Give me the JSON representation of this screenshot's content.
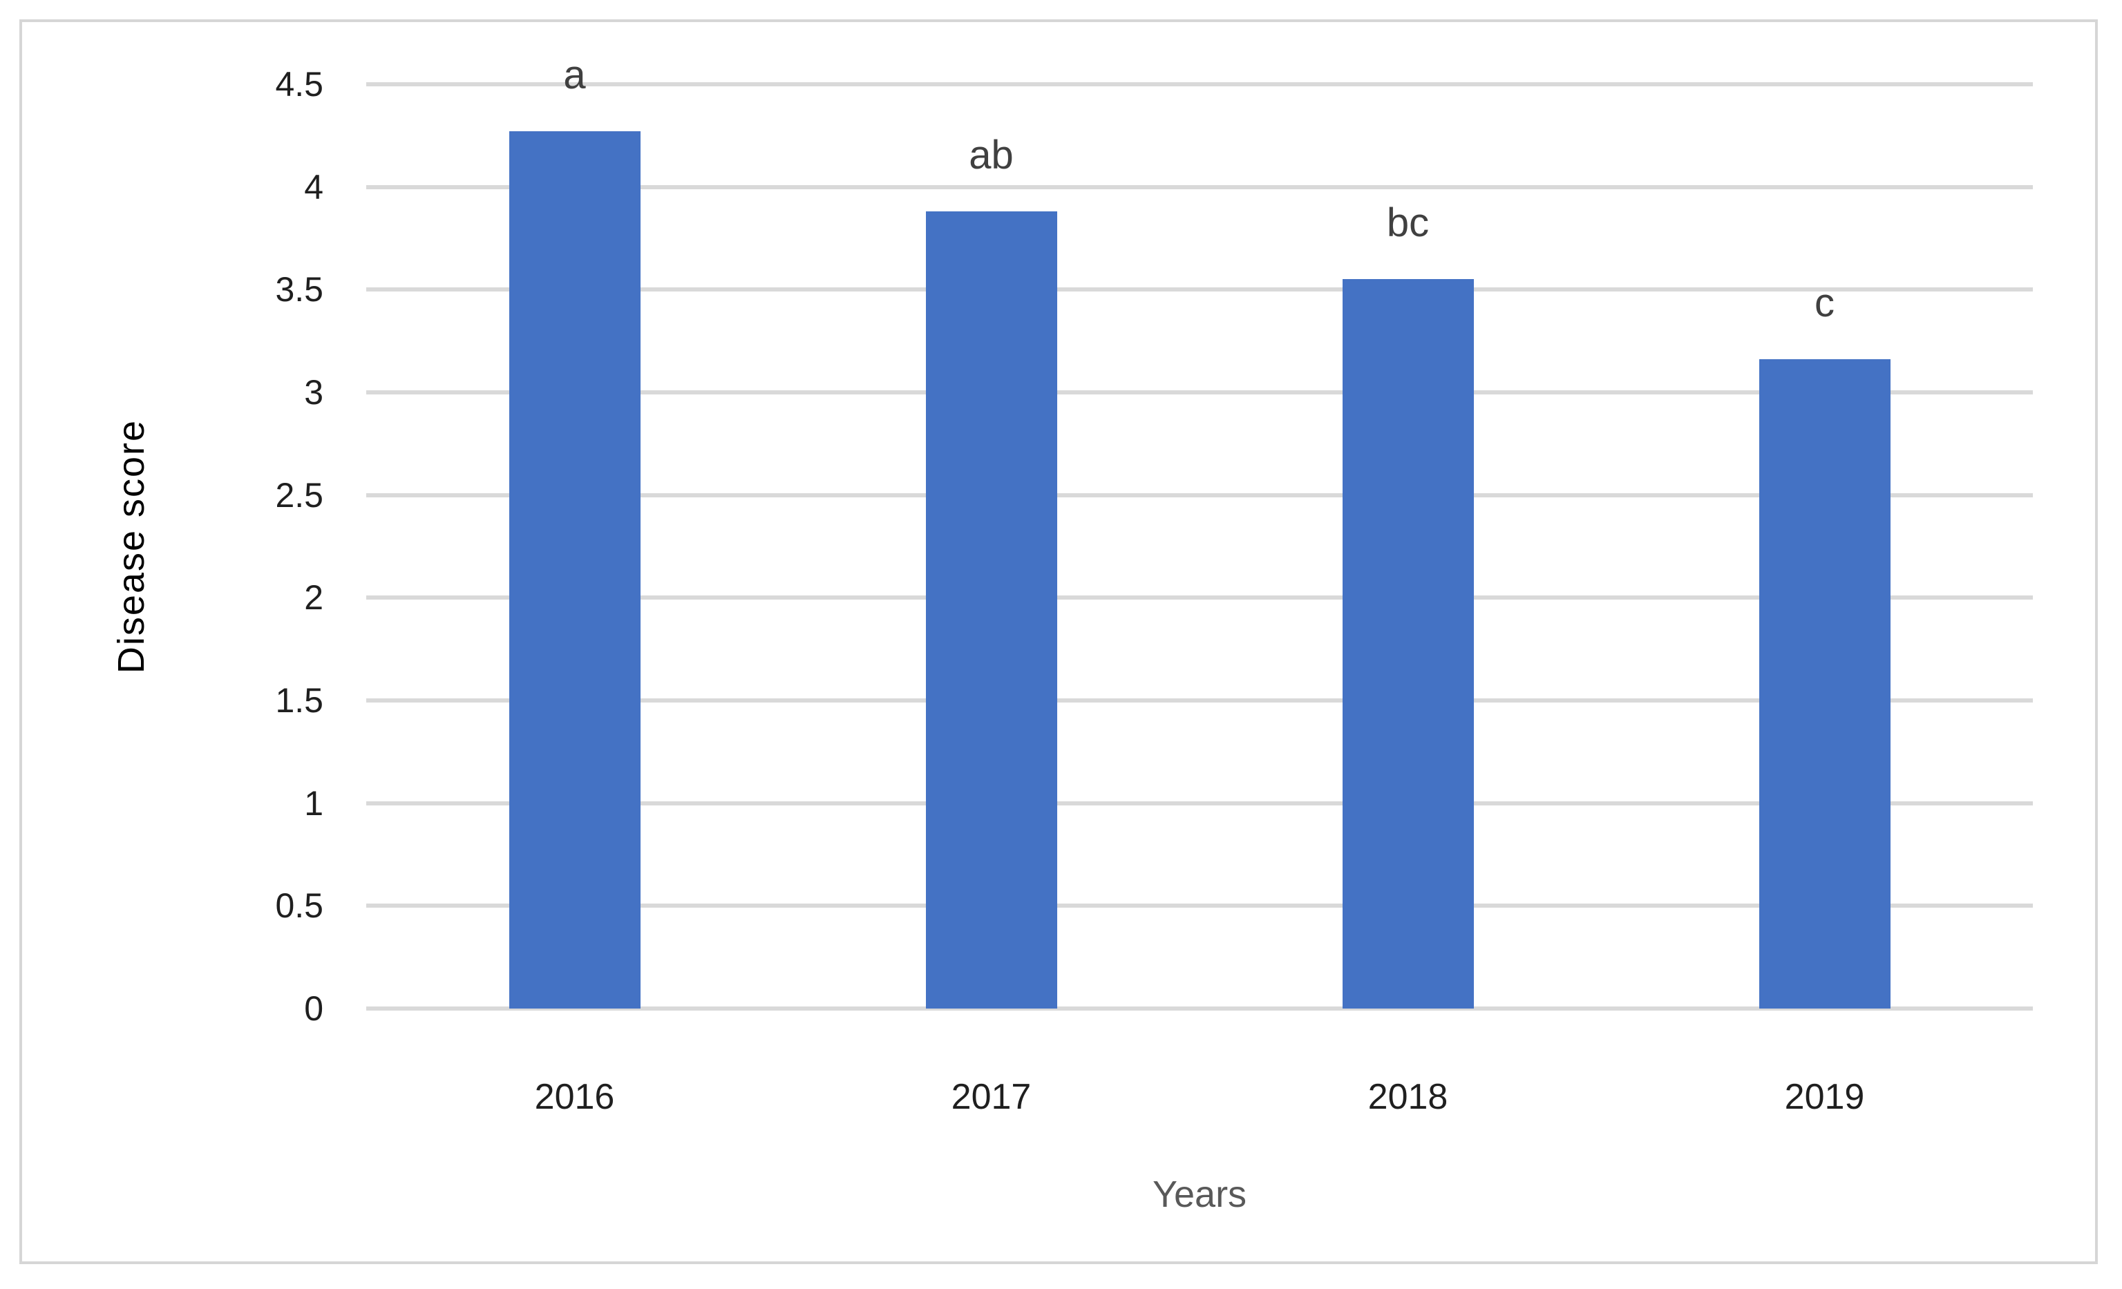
{
  "chart_data": {
    "type": "bar",
    "title": "",
    "xlabel": "Years",
    "ylabel": "Disease score",
    "categories": [
      "2016",
      "2017",
      "2018",
      "2019"
    ],
    "values": [
      4.27,
      3.88,
      3.55,
      3.16
    ],
    "bar_annotations": [
      "a",
      "ab",
      "bc",
      "c"
    ],
    "ylim": [
      0,
      4.5
    ],
    "ytick_step": 0.5,
    "yticks": [
      "4.5",
      "4",
      "3.5",
      "3",
      "2.5",
      "2",
      "1.5",
      "1",
      "0.5",
      "0"
    ],
    "grid": true,
    "legend": "none",
    "colors": {
      "bar_fill": "#4472C4",
      "gridline": "#d9d9d9",
      "frame_border": "#d6d6d6",
      "tick_text": "#1f1f1f",
      "annotation_text": "#404040",
      "xlabel_text": "#595959",
      "ylabel_text": "#000000"
    }
  }
}
